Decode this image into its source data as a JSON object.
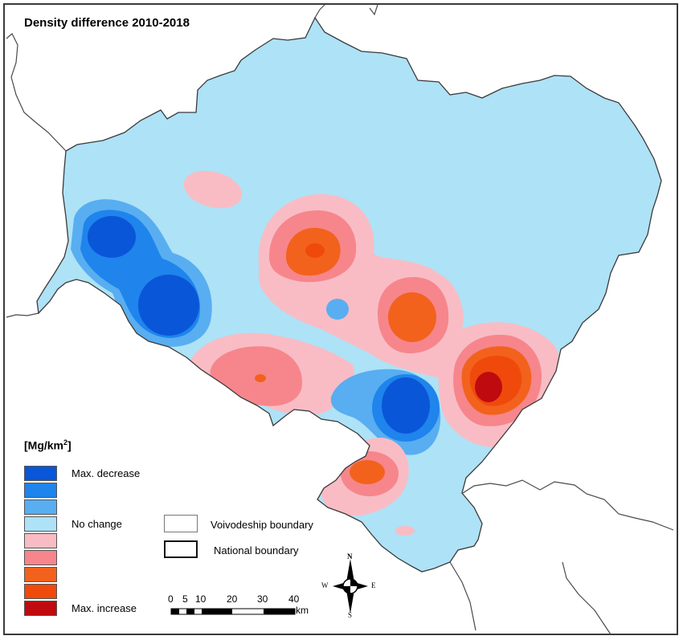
{
  "title": "Density difference 2010-2018",
  "legend": {
    "title": "[Mg/km",
    "title_sup": "2",
    "title_end": "]",
    "classes": [
      {
        "color": "#0a56d8",
        "label": "Max. decrease"
      },
      {
        "color": "#1f84ec",
        "label": ""
      },
      {
        "color": "#58aef0",
        "label": ""
      },
      {
        "color": "#aee2f6",
        "label": "No change"
      },
      {
        "color": "#f9bcc4",
        "label": ""
      },
      {
        "color": "#f6868c",
        "label": ""
      },
      {
        "color": "#f3621c",
        "label": ""
      },
      {
        "color": "#ef4a0c",
        "label": ""
      },
      {
        "color": "#bf0a10",
        "label": "Max. increase"
      }
    ]
  },
  "boundaries": {
    "voivodeship": "Voivodeship boundary",
    "national": "National boundary"
  },
  "scale_bar": {
    "ticks": [
      "0",
      "5",
      "10",
      "20",
      "30",
      "40"
    ],
    "unit": "km"
  },
  "compass": {
    "n": "N",
    "s": "S",
    "e": "E",
    "w": "W"
  }
}
